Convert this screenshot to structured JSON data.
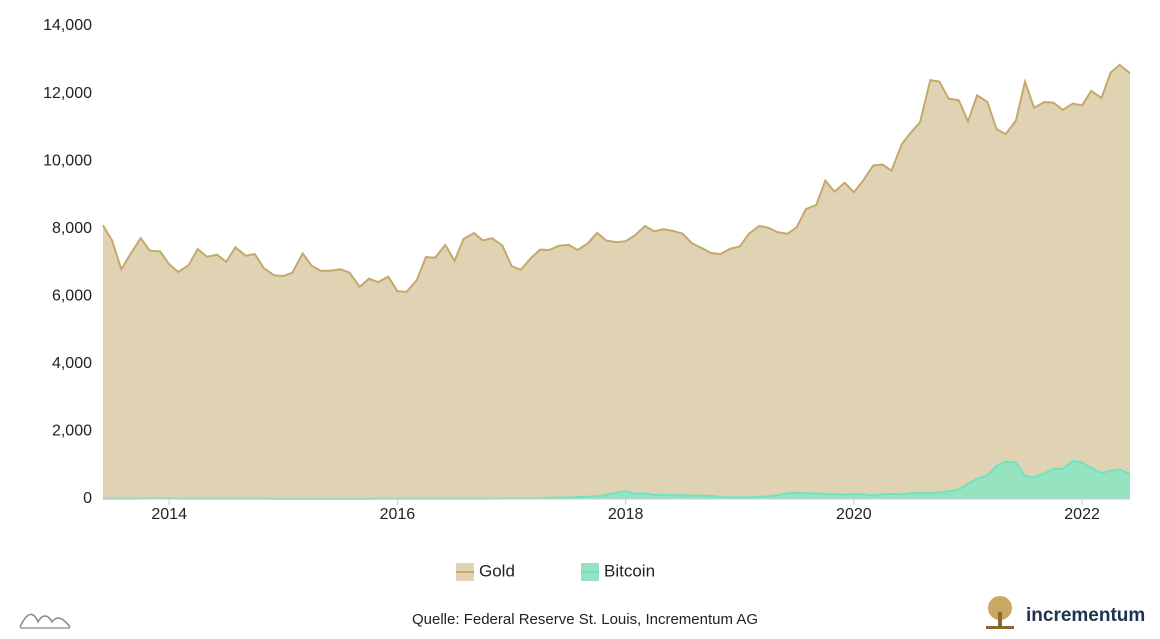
{
  "chart_data": {
    "type": "area",
    "x": [
      2013.42,
      2013.5,
      2013.58,
      2013.67,
      2013.75,
      2013.83,
      2013.92,
      2014,
      2014.08,
      2014.17,
      2014.25,
      2014.33,
      2014.42,
      2014.5,
      2014.58,
      2014.67,
      2014.75,
      2014.83,
      2014.92,
      2015,
      2015.08,
      2015.17,
      2015.25,
      2015.33,
      2015.42,
      2015.5,
      2015.58,
      2015.67,
      2015.75,
      2015.83,
      2015.92,
      2016,
      2016.08,
      2016.17,
      2016.25,
      2016.33,
      2016.42,
      2016.5,
      2016.58,
      2016.67,
      2016.75,
      2016.83,
      2016.92,
      2017,
      2017.08,
      2017.17,
      2017.25,
      2017.33,
      2017.42,
      2017.5,
      2017.58,
      2017.67,
      2017.75,
      2017.83,
      2017.92,
      2018,
      2018.08,
      2018.17,
      2018.25,
      2018.33,
      2018.42,
      2018.5,
      2018.58,
      2018.67,
      2018.75,
      2018.83,
      2018.92,
      2019,
      2019.08,
      2019.17,
      2019.25,
      2019.33,
      2019.42,
      2019.5,
      2019.58,
      2019.67,
      2019.75,
      2019.83,
      2019.92,
      2020,
      2020.08,
      2020.17,
      2020.25,
      2020.33,
      2020.42,
      2020.5,
      2020.58,
      2020.67,
      2020.75,
      2020.83,
      2020.92,
      2021,
      2021.08,
      2021.17,
      2021.25,
      2021.33,
      2021.42,
      2021.5,
      2021.58,
      2021.67,
      2021.75,
      2021.83,
      2021.92,
      2022,
      2022.08,
      2022.17,
      2022.25,
      2022.33,
      2022.42
    ],
    "series": [
      {
        "name": "Gold",
        "color": "#c4a96a",
        "fill": "#e0d3b3",
        "values": [
          8100,
          7650,
          6800,
          7300,
          7720,
          7350,
          7330,
          6950,
          6720,
          6920,
          7400,
          7170,
          7230,
          7020,
          7450,
          7200,
          7250,
          6830,
          6620,
          6600,
          6700,
          7270,
          6900,
          6750,
          6760,
          6800,
          6700,
          6280,
          6520,
          6420,
          6580,
          6150,
          6130,
          6480,
          7160,
          7140,
          7520,
          7050,
          7700,
          7870,
          7650,
          7720,
          7500,
          6900,
          6780,
          7130,
          7380,
          7370,
          7500,
          7520,
          7370,
          7570,
          7880,
          7650,
          7600,
          7630,
          7800,
          8080,
          7920,
          7990,
          7930,
          7850,
          7570,
          7420,
          7280,
          7250,
          7410,
          7470,
          7850,
          8080,
          8030,
          7900,
          7850,
          8050,
          8580,
          8700,
          9420,
          9100,
          9360,
          9080,
          9420,
          9870,
          9900,
          9720,
          10500,
          10850,
          11150,
          12400,
          12350,
          11850,
          11800,
          11180,
          11950,
          11750,
          10950,
          10800,
          11200,
          12350,
          11580,
          11750,
          11730,
          11520,
          11700,
          11650,
          12080,
          11870,
          12620,
          12850,
          12600
        ]
      },
      {
        "name": "Bitcoin",
        "color": "#6fe3c0",
        "fill": "#96e3c2",
        "values": [
          5,
          5,
          6,
          8,
          12,
          20,
          18,
          14,
          12,
          10,
          9,
          8,
          8,
          8,
          7,
          6,
          5,
          5,
          4,
          3,
          3,
          4,
          3,
          3,
          3,
          4,
          4,
          3,
          4,
          5,
          6,
          6,
          6,
          6,
          7,
          8,
          10,
          9,
          9,
          9,
          10,
          11,
          13,
          15,
          17,
          17,
          22,
          35,
          40,
          45,
          60,
          65,
          80,
          120,
          190,
          230,
          160,
          170,
          120,
          130,
          110,
          110,
          100,
          100,
          90,
          60,
          50,
          50,
          50,
          60,
          80,
          110,
          170,
          190,
          170,
          165,
          145,
          140,
          130,
          150,
          140,
          105,
          140,
          150,
          140,
          170,
          180,
          170,
          200,
          230,
          280,
          450,
          600,
          700,
          980,
          1100,
          1080,
          680,
          640,
          760,
          900,
          890,
          1130,
          1080,
          920,
          770,
          840,
          870,
          740
        ]
      }
    ],
    "xlim": [
      2013.42,
      2022.42
    ],
    "xticks": [
      2014,
      2016,
      2018,
      2020,
      2022
    ],
    "ylim": [
      0,
      14000
    ],
    "yticks": [
      0,
      {
        "value": 2000,
        "label": "2,000"
      },
      {
        "value": 4000,
        "label": "4,000"
      },
      {
        "value": 6000,
        "label": "6,000"
      },
      {
        "value": 8000,
        "label": "8,000"
      },
      {
        "value": 10000,
        "label": "10,000"
      },
      {
        "value": 12000,
        "label": "12,000"
      },
      {
        "value": 14000,
        "label": "14,000"
      }
    ],
    "grid": false,
    "legend": "bottom",
    "source": "Quelle: Federal Reserve St. Louis, Incrementum AG",
    "brand": "incrementum"
  }
}
